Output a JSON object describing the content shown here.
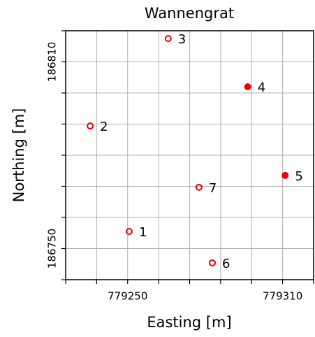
{
  "chart_data": {
    "type": "scatter",
    "title": "Wannengrat",
    "xlabel": "Easting [m]",
    "ylabel": "Northing [m]",
    "xlim": [
      779226,
      779322
    ],
    "ylim": [
      186740,
      186820
    ],
    "xticks": [
      779250,
      779310
    ],
    "yticks": [
      186750,
      186810
    ],
    "xticks_minor": [
      779226,
      779238,
      779262,
      779274,
      779286,
      779298,
      779322
    ],
    "yticks_minor": [
      186740,
      186760,
      186770,
      186780,
      186790,
      186800,
      186820
    ],
    "grid": true,
    "color": "#e8000b",
    "labels": [
      "1",
      "2",
      "3",
      "4",
      "5",
      "6",
      "7"
    ],
    "x": [
      779250.6,
      779235.5,
      779265.7,
      779296.5,
      779311,
      779282.8,
      779277.6
    ],
    "y": [
      186755.5,
      186789.4,
      186817.5,
      186802,
      186773.5,
      186745.4,
      186769.7
    ],
    "filled": [
      false,
      false,
      false,
      true,
      true,
      false,
      false
    ]
  }
}
